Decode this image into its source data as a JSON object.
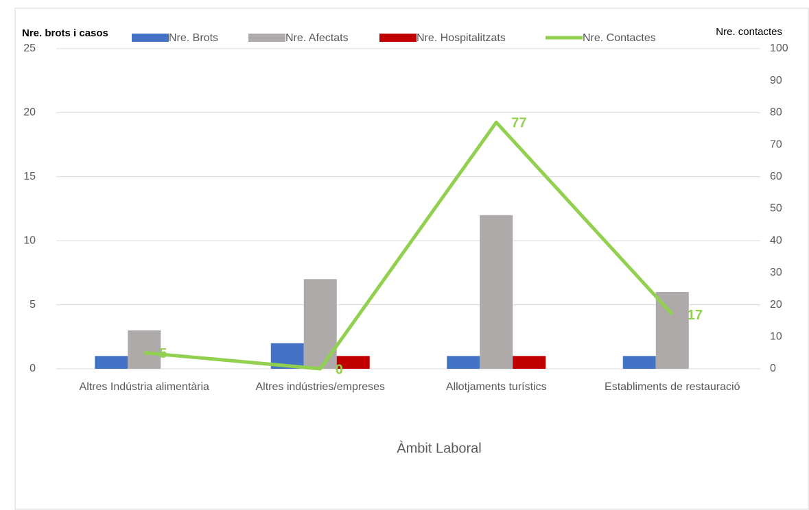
{
  "chart_data": {
    "type": "bar",
    "categories": [
      "Altres Indústria alimentària",
      "Altres indústries/empreses",
      "Allotjaments turístics",
      "Establiments de restauració"
    ],
    "series": [
      {
        "name": "Nre. Brots",
        "color": "#4472c4",
        "values": [
          1,
          2,
          1,
          1
        ]
      },
      {
        "name": "Nre.  Afectats",
        "color": "#aeaaaa",
        "values": [
          3,
          7,
          12,
          6
        ]
      },
      {
        "name": "Nre.  Hospitalitzats",
        "color": "#c00000",
        "values": [
          0,
          1,
          1,
          0
        ]
      },
      {
        "name": "Nre. Contactes",
        "color": "#92d050",
        "values": [
          5,
          0,
          77,
          17
        ],
        "axis": "y2",
        "type": "line"
      }
    ],
    "ylabel": "Nre. brots i casos",
    "y2label": "Nre. contactes",
    "xlabel": "Àmbit Laboral",
    "ylim": [
      0,
      25
    ],
    "yticks": [
      0,
      5,
      10,
      15,
      20,
      25
    ],
    "y2lim": [
      0,
      100
    ],
    "y2ticks": [
      0,
      10,
      20,
      30,
      40,
      50,
      60,
      70,
      80,
      90,
      100
    ],
    "grid": true,
    "legend": "top"
  }
}
